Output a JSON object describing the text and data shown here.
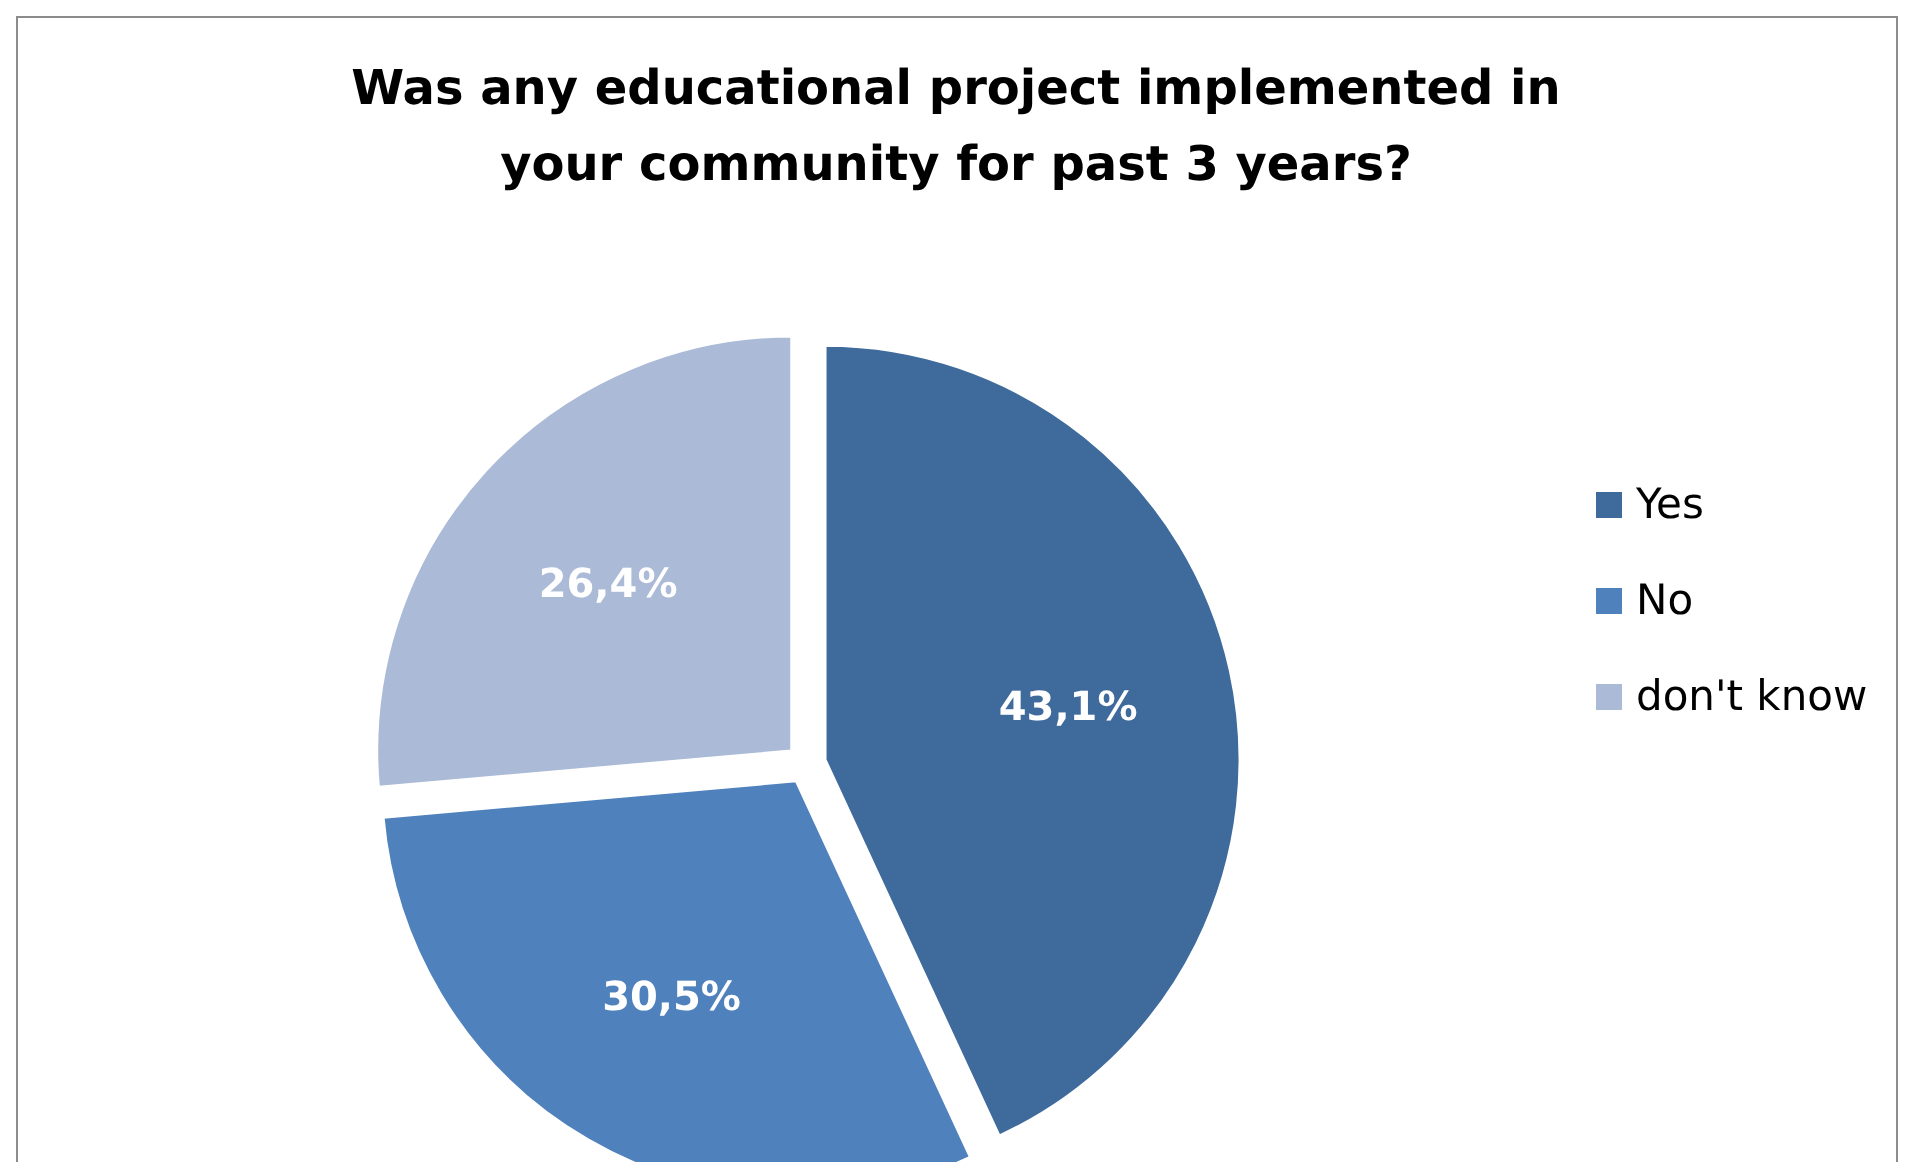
{
  "chart_data": {
    "type": "pie",
    "title": "Was any educational project implemented in your community for past 3 years?",
    "categories": [
      "Yes",
      "No",
      "don't know"
    ],
    "values": [
      43.1,
      30.5,
      26.4
    ],
    "colors": [
      "#3f6a9c",
      "#4f81bd",
      "#aabad7"
    ],
    "value_labels": [
      "43,1%",
      "30,5%",
      "26,4%"
    ],
    "legend": "right"
  }
}
